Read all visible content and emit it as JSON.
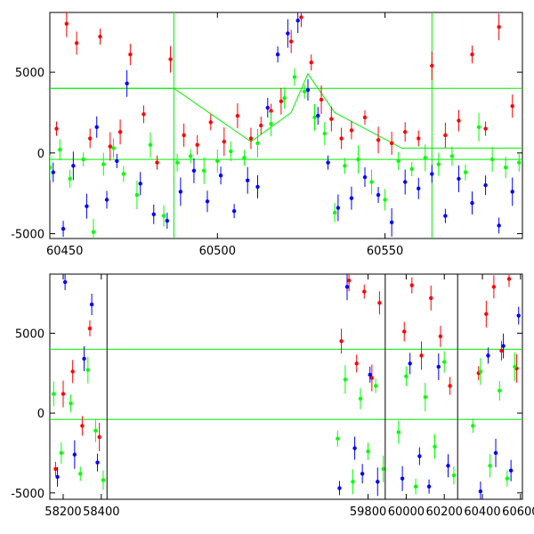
{
  "chart_data": [
    {
      "type": "scatter",
      "title": "",
      "xlabel": "",
      "ylabel": "",
      "xlim": [
        60450,
        60591
      ],
      "ylim": [
        -5300,
        8700
      ],
      "x_ticks": [
        60450,
        60500,
        60550
      ],
      "y_ticks": [
        -5000,
        0,
        5000
      ],
      "error_bars": true,
      "grid": false,
      "reference_lines": {
        "horizontal": [
          4000,
          -400
        ],
        "vertical": [
          60487,
          60564
        ]
      },
      "envelope": {
        "x": [
          60450,
          60487,
          60510,
          60522,
          60527,
          60535,
          60555,
          60591
        ],
        "y": [
          4000,
          4000,
          700,
          2500,
          4900,
          2500,
          300,
          300
        ]
      },
      "series": [
        {
          "color": "#ff0000",
          "x": [
            60452,
            60455,
            60458,
            60462,
            60465,
            60468,
            60471,
            60474,
            60478,
            60482,
            60486,
            60490,
            60494,
            60498,
            60502,
            60506,
            60510,
            60513,
            60516,
            60519,
            60522,
            60525,
            60528,
            60531,
            60534,
            60537,
            60540,
            60544,
            60548,
            60552,
            60556,
            60560,
            60564,
            60568,
            60572,
            60576,
            60580,
            60584,
            60588
          ],
          "y": [
            1500,
            8000,
            6800,
            900,
            7200,
            400,
            1300,
            6100,
            2400,
            -600,
            5800,
            1100,
            500,
            1900,
            700,
            2300,
            900,
            1700,
            2600,
            3200,
            6900,
            8400,
            5600,
            3300,
            2100,
            900,
            1400,
            2200,
            800,
            600,
            1300,
            900,
            5400,
            1100,
            2000,
            6100,
            1500,
            7800,
            2900
          ]
        },
        {
          "color": "#0000ff",
          "x": [
            60451,
            60454,
            60457,
            60461,
            60464,
            60467,
            60470,
            60473,
            60477,
            60481,
            60485,
            60489,
            60493,
            60497,
            60501,
            60505,
            60509,
            60512,
            60515,
            60518,
            60521,
            60524,
            60527,
            60530,
            60533,
            60536,
            60540,
            60544,
            60548,
            60552,
            60556,
            60560,
            60564,
            60568,
            60572,
            60576,
            60580,
            60584,
            60588
          ],
          "y": [
            -1200,
            -4700,
            -800,
            -3300,
            1600,
            -2900,
            -500,
            4300,
            -1900,
            -3800,
            -4200,
            -2400,
            -1100,
            -3000,
            -1400,
            -3600,
            -1700,
            -2100,
            2800,
            6100,
            7400,
            8200,
            3900,
            2300,
            -600,
            -3400,
            -2800,
            -1500,
            -2600,
            -4300,
            -1800,
            -2200,
            -1300,
            -3900,
            -1600,
            -3100,
            -2000,
            -4500,
            -2400
          ]
        },
        {
          "color": "#00ff00",
          "x": [
            60450,
            60453,
            60456,
            60460,
            60463,
            60466,
            60469,
            60472,
            60476,
            60480,
            60484,
            60488,
            60492,
            60496,
            60500,
            60504,
            60508,
            60512,
            60516,
            60520,
            60523,
            60526,
            60529,
            60532,
            60535,
            60538,
            60542,
            60546,
            60550,
            60554,
            60558,
            60562,
            60566,
            60570,
            60574,
            60578,
            60582,
            60586,
            60590
          ],
          "y": [
            -900,
            200,
            -1600,
            -400,
            -4900,
            -700,
            300,
            -1300,
            -2600,
            500,
            -3900,
            -600,
            -200,
            -1100,
            -500,
            100,
            -300,
            600,
            1800,
            3400,
            4700,
            3800,
            2200,
            1200,
            -3700,
            -800,
            -400,
            -1800,
            -2900,
            -500,
            -1000,
            -300,
            -700,
            -200,
            -1200,
            1600,
            -400,
            -900,
            -600
          ]
        }
      ]
    },
    {
      "type": "scatter",
      "title": "",
      "xlabel": "",
      "ylabel": "",
      "xlim": [
        58130,
        60610
      ],
      "ylim": [
        -5400,
        8700
      ],
      "x_ticks": [
        58200,
        58400,
        59800,
        60000,
        60200,
        60400,
        60600
      ],
      "y_ticks": [
        -5000,
        0,
        5000
      ],
      "error_bars": true,
      "grid": false,
      "segments": [
        {
          "x0": 58130,
          "x1": 58430
        },
        {
          "x0": 59630,
          "x1": 59890
        },
        {
          "x0": 59940,
          "x1": 60270
        },
        {
          "x0": 60320,
          "x1": 60610
        }
      ],
      "reference_lines": {
        "horizontal": [
          4000,
          -400
        ]
      },
      "series": [
        {
          "color": "#ff0000",
          "x": [
            58160,
            58200,
            58250,
            58300,
            58340,
            58390,
            59660,
            59700,
            59740,
            59780,
            59820,
            59860,
            59990,
            60030,
            60080,
            60130,
            60180,
            60230,
            60380,
            60420,
            60460,
            60500,
            60540,
            60580
          ],
          "y": [
            -3500,
            1200,
            2600,
            -800,
            5300,
            -1500,
            4500,
            8300,
            3100,
            7600,
            2200,
            6900,
            5100,
            8000,
            3600,
            7200,
            4800,
            1700,
            2500,
            6200,
            7900,
            3900,
            8400,
            2800
          ]
        },
        {
          "color": "#0000ff",
          "x": [
            58170,
            58210,
            58260,
            58310,
            58350,
            58380,
            59650,
            59690,
            59730,
            59770,
            59810,
            59850,
            59980,
            60020,
            60070,
            60120,
            60170,
            60220,
            60390,
            60430,
            60470,
            60510,
            60550,
            60590
          ],
          "y": [
            -4000,
            8200,
            -2600,
            3400,
            6800,
            -3100,
            -4700,
            7900,
            -2200,
            -3800,
            2400,
            -4300,
            -4100,
            3100,
            -2700,
            -4600,
            2900,
            -3300,
            -4900,
            3600,
            -2500,
            4200,
            -3600,
            6100
          ]
        },
        {
          "color": "#00ff00",
          "x": [
            58150,
            58190,
            58240,
            58290,
            58330,
            58370,
            58410,
            59640,
            59680,
            59720,
            59760,
            59800,
            59840,
            59880,
            59960,
            60000,
            60050,
            60100,
            60150,
            60200,
            60250,
            60350,
            60390,
            60440,
            60490,
            60530,
            60570
          ],
          "y": [
            1200,
            -2500,
            600,
            -3800,
            2700,
            -1100,
            -4200,
            -1600,
            2100,
            -4300,
            900,
            -2400,
            1700,
            -3500,
            -1200,
            2300,
            -4600,
            1000,
            -2100,
            3200,
            -3900,
            -800,
            2600,
            -3300,
            1400,
            -4100,
            2900
          ]
        }
      ]
    }
  ]
}
